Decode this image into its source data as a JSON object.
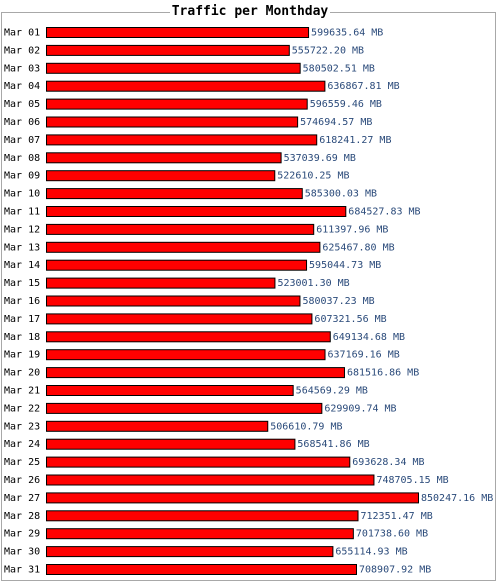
{
  "chart_data": {
    "type": "bar",
    "orientation": "horizontal",
    "title": "Traffic per Monthday",
    "unit": "MB",
    "categories": [
      "Mar 01",
      "Mar 02",
      "Mar 03",
      "Mar 04",
      "Mar 05",
      "Mar 06",
      "Mar 07",
      "Mar 08",
      "Mar 09",
      "Mar 10",
      "Mar 11",
      "Mar 12",
      "Mar 13",
      "Mar 14",
      "Mar 15",
      "Mar 16",
      "Mar 17",
      "Mar 18",
      "Mar 19",
      "Mar 20",
      "Mar 21",
      "Mar 22",
      "Mar 23",
      "Mar 24",
      "Mar 25",
      "Mar 26",
      "Mar 27",
      "Mar 28",
      "Mar 29",
      "Mar 30",
      "Mar 31"
    ],
    "values": [
      599635.64,
      555722.2,
      580502.51,
      636867.81,
      596559.46,
      574694.57,
      618241.27,
      537039.69,
      522610.25,
      585300.03,
      684527.83,
      611397.96,
      625467.8,
      595044.73,
      523001.3,
      580037.23,
      607321.56,
      649134.68,
      637169.16,
      681516.86,
      564569.29,
      629909.74,
      506610.79,
      568541.86,
      693628.34,
      748705.15,
      850247.16,
      712351.47,
      701738.6,
      655114.93,
      708907.92
    ],
    "value_labels": [
      "599635.64 MB",
      "555722.20 MB",
      "580502.51 MB",
      "636867.81 MB",
      "596559.46 MB",
      "574694.57 MB",
      "618241.27 MB",
      "537039.69 MB",
      "522610.25 MB",
      "585300.03 MB",
      "684527.83 MB",
      "611397.96 MB",
      "625467.80 MB",
      "595044.73 MB",
      "523001.30 MB",
      "580037.23 MB",
      "607321.56 MB",
      "649134.68 MB",
      "637169.16 MB",
      "681516.86 MB",
      "564569.29 MB",
      "629909.74 MB",
      "506610.79 MB",
      "568541.86 MB",
      "693628.34 MB",
      "748705.15 MB",
      "850247.16 MB",
      "712351.47 MB",
      "701738.60 MB",
      "655114.93 MB",
      "708907.92 MB"
    ],
    "bar_color": "#ff0000",
    "bar_border": "#000000",
    "value_color": "#2a4a7a",
    "xlim": [
      0,
      850247.16
    ]
  }
}
